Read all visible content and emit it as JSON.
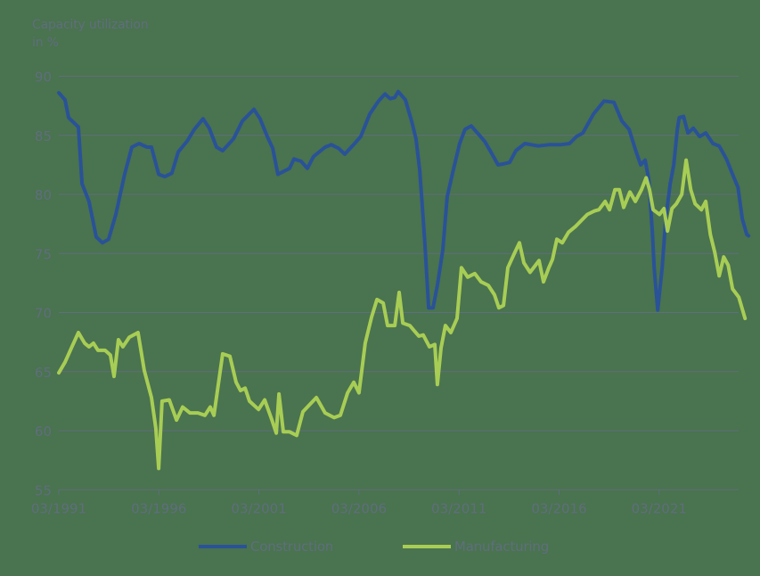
{
  "chart_data": {
    "type": "line",
    "title": "",
    "ylabel": "Capacity utilization in %",
    "ylabel_lines": [
      "Capacity utilization",
      "in %"
    ],
    "xlabel": "",
    "ylim": [
      55,
      90
    ],
    "yticks": [
      90,
      85,
      80,
      75,
      70,
      65,
      60,
      55
    ],
    "xlim": [
      1991.17,
      2025.15
    ],
    "xticks": [
      {
        "label": "03/1991",
        "x": 1991.17
      },
      {
        "label": "03/1996",
        "x": 1996.17
      },
      {
        "label": "03/2001",
        "x": 2001.17
      },
      {
        "label": "03/2006",
        "x": 2006.17
      },
      {
        "label": "03/2011",
        "x": 2011.17
      },
      {
        "label": "03/2016",
        "x": 2016.17
      },
      {
        "label": "03/2021",
        "x": 2021.17
      }
    ],
    "grid": "horizontal",
    "legend_position": "bottom",
    "series": [
      {
        "name": "Construction",
        "color": "#2a5298",
        "points": [
          [
            1991.17,
            88.6
          ],
          [
            1991.48,
            88.0
          ],
          [
            1991.66,
            86.5
          ],
          [
            1992.15,
            85.7
          ],
          [
            1992.33,
            80.9
          ],
          [
            1992.68,
            79.4
          ],
          [
            1993.04,
            76.4
          ],
          [
            1993.35,
            75.9
          ],
          [
            1993.66,
            76.2
          ],
          [
            1994.02,
            78.3
          ],
          [
            1994.46,
            81.7
          ],
          [
            1994.82,
            84.0
          ],
          [
            1995.18,
            84.3
          ],
          [
            1995.58,
            84.0
          ],
          [
            1995.8,
            84.0
          ],
          [
            1996.16,
            81.7
          ],
          [
            1996.47,
            81.5
          ],
          [
            1996.82,
            81.8
          ],
          [
            1997.14,
            83.6
          ],
          [
            1997.58,
            84.5
          ],
          [
            1997.94,
            85.5
          ],
          [
            1998.38,
            86.4
          ],
          [
            1998.69,
            85.6
          ],
          [
            1999.05,
            84.0
          ],
          [
            1999.36,
            83.7
          ],
          [
            1999.9,
            84.7
          ],
          [
            2000.34,
            86.2
          ],
          [
            2000.92,
            87.2
          ],
          [
            2001.23,
            86.4
          ],
          [
            2001.59,
            84.9
          ],
          [
            2001.86,
            83.9
          ],
          [
            2002.12,
            81.7
          ],
          [
            2002.7,
            82.2
          ],
          [
            2002.92,
            83.0
          ],
          [
            2003.28,
            82.8
          ],
          [
            2003.59,
            82.2
          ],
          [
            2003.9,
            83.2
          ],
          [
            2004.48,
            84.0
          ],
          [
            2004.79,
            84.2
          ],
          [
            2005.15,
            83.9
          ],
          [
            2005.46,
            83.4
          ],
          [
            2005.95,
            84.3
          ],
          [
            2006.26,
            84.9
          ],
          [
            2006.71,
            86.8
          ],
          [
            2007.15,
            87.9
          ],
          [
            2007.47,
            88.5
          ],
          [
            2007.73,
            88.1
          ],
          [
            2007.96,
            88.2
          ],
          [
            2008.13,
            88.7
          ],
          [
            2008.49,
            88.0
          ],
          [
            2008.8,
            86.2
          ],
          [
            2009.02,
            84.7
          ],
          [
            2009.2,
            82.1
          ],
          [
            2009.33,
            79.1
          ],
          [
            2009.47,
            75.7
          ],
          [
            2009.65,
            70.4
          ],
          [
            2009.87,
            70.4
          ],
          [
            2010.09,
            72.3
          ],
          [
            2010.36,
            75.3
          ],
          [
            2010.58,
            79.8
          ],
          [
            2010.89,
            82.1
          ],
          [
            2011.2,
            84.3
          ],
          [
            2011.47,
            85.5
          ],
          [
            2011.78,
            85.8
          ],
          [
            2012.14,
            85.1
          ],
          [
            2012.45,
            84.5
          ],
          [
            2012.76,
            83.6
          ],
          [
            2013.12,
            82.5
          ],
          [
            2013.43,
            82.6
          ],
          [
            2013.7,
            82.7
          ],
          [
            2014.01,
            83.7
          ],
          [
            2014.46,
            84.3
          ],
          [
            2015.13,
            84.1
          ],
          [
            2015.66,
            84.2
          ],
          [
            2016.24,
            84.2
          ],
          [
            2016.69,
            84.3
          ],
          [
            2017.04,
            84.9
          ],
          [
            2017.36,
            85.2
          ],
          [
            2017.89,
            86.8
          ],
          [
            2018.42,
            87.9
          ],
          [
            2018.91,
            87.8
          ],
          [
            2019.31,
            86.2
          ],
          [
            2019.67,
            85.5
          ],
          [
            2020.02,
            83.6
          ],
          [
            2020.25,
            82.5
          ],
          [
            2020.47,
            82.9
          ],
          [
            2020.65,
            81.3
          ],
          [
            2020.83,
            76.8
          ],
          [
            2020.92,
            73.8
          ],
          [
            2021.1,
            70.2
          ],
          [
            2021.32,
            73.8
          ],
          [
            2021.5,
            77.9
          ],
          [
            2021.72,
            80.9
          ],
          [
            2021.9,
            82.5
          ],
          [
            2022.08,
            85.5
          ],
          [
            2022.17,
            86.5
          ],
          [
            2022.39,
            86.6
          ],
          [
            2022.61,
            85.2
          ],
          [
            2022.88,
            85.6
          ],
          [
            2023.19,
            84.9
          ],
          [
            2023.5,
            85.2
          ],
          [
            2023.86,
            84.3
          ],
          [
            2024.17,
            84.1
          ],
          [
            2024.53,
            83.0
          ],
          [
            2024.84,
            81.7
          ],
          [
            2025.11,
            80.6
          ],
          [
            2025.33,
            77.9
          ],
          [
            2025.55,
            76.6
          ],
          [
            2025.64,
            76.5
          ]
        ]
      },
      {
        "name": "Manufacturing",
        "color": "#a8cd55",
        "points": [
          [
            1991.17,
            64.9
          ],
          [
            1991.48,
            65.8
          ],
          [
            1991.8,
            67.0
          ],
          [
            1992.15,
            68.3
          ],
          [
            1992.46,
            67.4
          ],
          [
            1992.68,
            67.1
          ],
          [
            1992.9,
            67.4
          ],
          [
            1993.13,
            66.8
          ],
          [
            1993.48,
            66.8
          ],
          [
            1993.75,
            66.4
          ],
          [
            1993.93,
            64.6
          ],
          [
            1994.15,
            67.7
          ],
          [
            1994.37,
            67.1
          ],
          [
            1994.69,
            67.9
          ],
          [
            1995.13,
            68.3
          ],
          [
            1995.44,
            65.1
          ],
          [
            1995.8,
            62.8
          ],
          [
            1996.02,
            60.2
          ],
          [
            1996.16,
            56.8
          ],
          [
            1996.33,
            62.5
          ],
          [
            1996.69,
            62.6
          ],
          [
            1997.05,
            60.9
          ],
          [
            1997.36,
            62.0
          ],
          [
            1997.72,
            61.5
          ],
          [
            1998.12,
            61.5
          ],
          [
            1998.47,
            61.3
          ],
          [
            1998.74,
            62.0
          ],
          [
            1998.92,
            61.3
          ],
          [
            1999.36,
            66.5
          ],
          [
            1999.72,
            66.3
          ],
          [
            2000.03,
            64.1
          ],
          [
            2000.25,
            63.4
          ],
          [
            2000.48,
            63.6
          ],
          [
            2000.7,
            62.5
          ],
          [
            2001.15,
            61.8
          ],
          [
            2001.46,
            62.6
          ],
          [
            2001.82,
            60.9
          ],
          [
            2002.04,
            59.8
          ],
          [
            2002.17,
            63.1
          ],
          [
            2002.39,
            59.9
          ],
          [
            2002.7,
            59.9
          ],
          [
            2003.06,
            59.6
          ],
          [
            2003.37,
            61.6
          ],
          [
            2004.04,
            62.8
          ],
          [
            2004.48,
            61.5
          ],
          [
            2004.93,
            61.1
          ],
          [
            2005.24,
            61.3
          ],
          [
            2005.6,
            63.2
          ],
          [
            2005.91,
            64.1
          ],
          [
            2006.17,
            63.2
          ],
          [
            2006.48,
            67.4
          ],
          [
            2006.8,
            69.6
          ],
          [
            2007.07,
            71.1
          ],
          [
            2007.38,
            70.8
          ],
          [
            2007.6,
            68.9
          ],
          [
            2007.96,
            68.9
          ],
          [
            2008.18,
            71.7
          ],
          [
            2008.36,
            69.1
          ],
          [
            2008.71,
            68.9
          ],
          [
            2009.16,
            68.0
          ],
          [
            2009.38,
            68.1
          ],
          [
            2009.69,
            67.1
          ],
          [
            2009.96,
            67.3
          ],
          [
            2010.09,
            63.9
          ],
          [
            2010.27,
            67.0
          ],
          [
            2010.49,
            68.9
          ],
          [
            2010.76,
            68.3
          ],
          [
            2011.07,
            69.5
          ],
          [
            2011.29,
            73.8
          ],
          [
            2011.6,
            73.0
          ],
          [
            2011.96,
            73.3
          ],
          [
            2012.27,
            72.6
          ],
          [
            2012.63,
            72.3
          ],
          [
            2012.94,
            71.5
          ],
          [
            2013.16,
            70.4
          ],
          [
            2013.39,
            70.6
          ],
          [
            2013.61,
            73.8
          ],
          [
            2013.96,
            75.1
          ],
          [
            2014.19,
            75.9
          ],
          [
            2014.41,
            74.2
          ],
          [
            2014.72,
            73.4
          ],
          [
            2014.99,
            74.0
          ],
          [
            2015.17,
            74.4
          ],
          [
            2015.39,
            72.6
          ],
          [
            2015.66,
            73.8
          ],
          [
            2015.84,
            74.5
          ],
          [
            2016.06,
            76.2
          ],
          [
            2016.33,
            75.9
          ],
          [
            2016.64,
            76.8
          ],
          [
            2017.0,
            77.3
          ],
          [
            2017.58,
            78.3
          ],
          [
            2017.94,
            78.6
          ],
          [
            2018.16,
            78.7
          ],
          [
            2018.47,
            79.4
          ],
          [
            2018.69,
            78.7
          ],
          [
            2018.96,
            80.4
          ],
          [
            2019.18,
            80.4
          ],
          [
            2019.4,
            78.9
          ],
          [
            2019.71,
            80.2
          ],
          [
            2019.98,
            79.4
          ],
          [
            2020.29,
            80.4
          ],
          [
            2020.52,
            81.4
          ],
          [
            2020.69,
            80.4
          ],
          [
            2020.87,
            78.7
          ],
          [
            2021.19,
            78.3
          ],
          [
            2021.41,
            78.8
          ],
          [
            2021.59,
            76.9
          ],
          [
            2021.81,
            78.8
          ],
          [
            2022.03,
            79.2
          ],
          [
            2022.3,
            80.0
          ],
          [
            2022.52,
            82.9
          ],
          [
            2022.75,
            80.4
          ],
          [
            2022.97,
            79.2
          ],
          [
            2023.28,
            78.7
          ],
          [
            2023.5,
            79.4
          ],
          [
            2023.73,
            76.6
          ],
          [
            2023.95,
            75.1
          ],
          [
            2024.17,
            73.1
          ],
          [
            2024.4,
            74.7
          ],
          [
            2024.62,
            74.0
          ],
          [
            2024.84,
            72.0
          ],
          [
            2025.15,
            71.3
          ],
          [
            2025.46,
            69.5
          ]
        ]
      }
    ]
  },
  "legend": {
    "items": [
      {
        "label": "Construction",
        "color": "#2a5298"
      },
      {
        "label": "Manufacturing",
        "color": "#a8cd55"
      }
    ]
  },
  "colors": {
    "background": "#4a734f",
    "grid": "#5f6e7e",
    "text": "#5f6e7e"
  }
}
